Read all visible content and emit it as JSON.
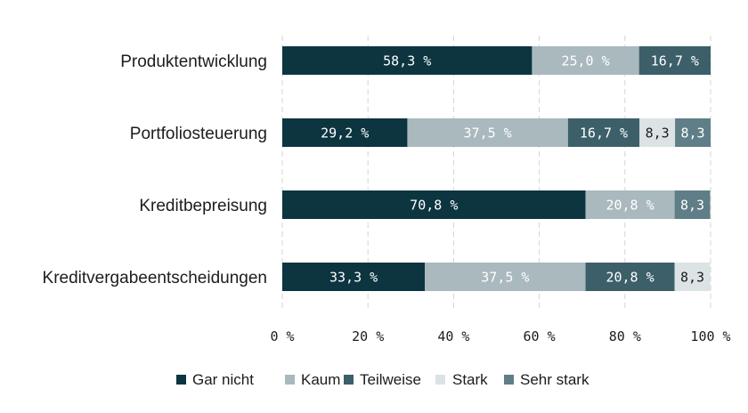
{
  "chart_data": {
    "type": "bar",
    "orientation": "horizontal",
    "stacked": true,
    "categories": [
      "Produktentwicklung",
      "Portfoliosteuerung",
      "Kreditbepreisung",
      "Kreditvergabeentscheidungen"
    ],
    "series": [
      {
        "name": "Gar nicht",
        "color": "#0c3540",
        "label_color": "#ffffff",
        "values": [
          58.3,
          29.2,
          70.8,
          33.3
        ],
        "labels": [
          "58,3 %",
          "29,2 %",
          "70,8 %",
          "33,3 %"
        ]
      },
      {
        "name": "Kaum",
        "color": "#a9b9bd",
        "label_color": "#ffffff",
        "values": [
          25.0,
          37.5,
          20.8,
          37.5
        ],
        "labels": [
          "25,0 %",
          "37,5 %",
          "20,8 %",
          "37,5 %"
        ]
      },
      {
        "name": "Teilweise",
        "color": "#3c5f6a",
        "label_color": "#ffffff",
        "values": [
          16.7,
          16.7,
          0,
          20.8
        ],
        "labels": [
          "16,7 %",
          "16,7 %",
          "",
          "20,8 %"
        ]
      },
      {
        "name": "Stark",
        "color": "#dbe3e5",
        "label_color": "#1c1c1c",
        "values": [
          0,
          8.3,
          0,
          8.3
        ],
        "labels": [
          "",
          "8,3",
          "",
          "8,3"
        ]
      },
      {
        "name": "Sehr stark",
        "color": "#5f7e87",
        "label_color": "#ffffff",
        "values": [
          0,
          8.3,
          8.3,
          0
        ],
        "labels": [
          "",
          "8,3",
          "8,3",
          ""
        ]
      }
    ],
    "xlim": [
      0,
      100
    ],
    "xticks": [
      0,
      20,
      40,
      60,
      80,
      100
    ],
    "xtick_labels": [
      "0 %",
      "20 %",
      "40 %",
      "60 %",
      "80 %",
      "100 %"
    ],
    "grid": true,
    "legend_position": "bottom",
    "title": "",
    "xlabel": "",
    "ylabel": ""
  }
}
